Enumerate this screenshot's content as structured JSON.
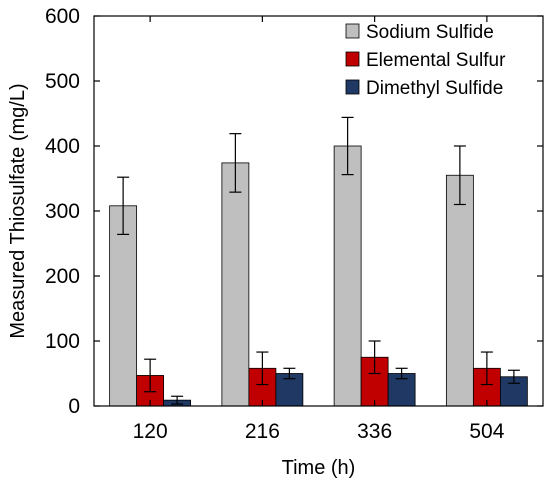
{
  "chart_data": {
    "type": "bar",
    "xlabel": "Time (h)",
    "ylabel": "Measured Thiosulfate (mg/L)",
    "ylim": [
      0,
      600
    ],
    "yticks": [
      0,
      100,
      200,
      300,
      400,
      500,
      600
    ],
    "categories": [
      "120",
      "216",
      "336",
      "504"
    ],
    "series": [
      {
        "name": "Sodium Sulfide",
        "color": "#bfbfbf",
        "values": [
          308,
          374,
          400,
          355
        ],
        "errors": [
          44,
          45,
          44,
          45
        ]
      },
      {
        "name": "Elemental Sulfur",
        "color": "#c00000",
        "values": [
          47,
          58,
          75,
          58
        ],
        "errors": [
          25,
          25,
          25,
          25
        ]
      },
      {
        "name": "Dimethyl Sulfide",
        "color": "#1f3864",
        "values": [
          9,
          50,
          50,
          45
        ],
        "errors": [
          6,
          8,
          8,
          10
        ]
      }
    ],
    "legend_position": "top-right",
    "grid": false,
    "error_bars": true
  }
}
